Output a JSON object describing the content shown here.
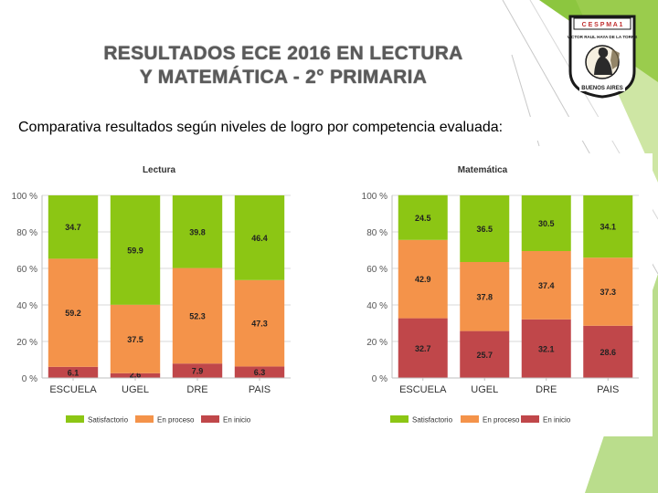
{
  "slide": {
    "title_line1": "RESULTADOS ECE 2016 EN LECTURA",
    "title_line2": "Y MATEMÁTICA - 2° PRIMARIA",
    "subtitle": "Comparativa resultados según niveles de logro por  competencia evaluada:",
    "logo": {
      "top_text": "C E  S P M  A 1",
      "arc_text": "VICTOR RAUL HAYA DE LA TORRE",
      "bottom_text": "BUENOS AIRES"
    }
  },
  "colors": {
    "satisfactorio": "#8cc614",
    "en_proceso": "#f4934a",
    "en_inicio": "#c0474a",
    "accent_green": "#8cc63f"
  },
  "chart_data": [
    {
      "type": "bar",
      "stacked": true,
      "title": "Lectura",
      "categories": [
        "ESCUELA",
        "UGEL",
        "DRE",
        "PAIS"
      ],
      "series": [
        {
          "name": "En inicio",
          "values": [
            6.1,
            2.6,
            7.9,
            6.3
          ]
        },
        {
          "name": "En proceso",
          "values": [
            59.2,
            37.5,
            52.3,
            47.3
          ]
        },
        {
          "name": "Satisfactorio",
          "values": [
            34.7,
            59.9,
            39.8,
            46.4
          ]
        }
      ],
      "yticks": [
        "0 %",
        "20 %",
        "40 %",
        "60 %",
        "80 %",
        "100 %"
      ],
      "ylim": [
        0,
        100
      ],
      "legend": [
        "Satisfactorio",
        "En proceso",
        "En inicio"
      ],
      "legend_position": "bottom"
    },
    {
      "type": "bar",
      "stacked": true,
      "title": "Matemática",
      "categories": [
        "ESCUELA",
        "UGEL",
        "DRE",
        "PAIS"
      ],
      "series": [
        {
          "name": "En inicio",
          "values": [
            32.7,
            25.7,
            32.1,
            28.6
          ]
        },
        {
          "name": "En proceso",
          "values": [
            42.9,
            37.8,
            37.4,
            37.3
          ]
        },
        {
          "name": "Satisfactorio",
          "values": [
            24.5,
            36.5,
            30.5,
            34.1
          ]
        }
      ],
      "yticks": [
        "0 %",
        "20 %",
        "40 %",
        "60 %",
        "80 %",
        "100 %"
      ],
      "ylim": [
        0,
        100
      ],
      "legend": [
        "Satisfactorio",
        "En proceso",
        "En inicio"
      ],
      "legend_position": "bottom"
    }
  ]
}
